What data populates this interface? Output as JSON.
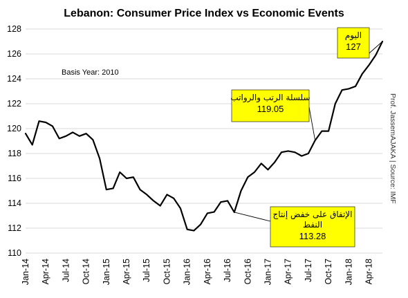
{
  "chart_data": {
    "type": "line",
    "title": "Lebanon: Consumer Price Index vs Economic Events",
    "xlabel": "",
    "ylabel": "",
    "ylim": [
      110,
      128
    ],
    "yticks": [
      110,
      112,
      114,
      116,
      118,
      120,
      122,
      124,
      126,
      128
    ],
    "grid": true,
    "legend": "none",
    "x_tick_labels": [
      "Jan-14",
      "Apr-14",
      "Jul-14",
      "Oct-14",
      "Jan-15",
      "Apr-15",
      "Jul-15",
      "Oct-15",
      "Jan-16",
      "Apr-16",
      "Jul-16",
      "Oct-16",
      "Jan-17",
      "Apr-17",
      "Jul-17",
      "Oct-17",
      "Jan-18",
      "Apr-18"
    ],
    "x": [
      "Jan-14",
      "Feb-14",
      "Mar-14",
      "Apr-14",
      "May-14",
      "Jun-14",
      "Jul-14",
      "Aug-14",
      "Sep-14",
      "Oct-14",
      "Nov-14",
      "Dec-14",
      "Jan-15",
      "Feb-15",
      "Mar-15",
      "Apr-15",
      "May-15",
      "Jun-15",
      "Jul-15",
      "Aug-15",
      "Sep-15",
      "Oct-15",
      "Nov-15",
      "Dec-15",
      "Jan-16",
      "Feb-16",
      "Mar-16",
      "Apr-16",
      "May-16",
      "Jun-16",
      "Jul-16",
      "Aug-16",
      "Sep-16",
      "Oct-16",
      "Nov-16",
      "Dec-16",
      "Jan-17",
      "Feb-17",
      "Mar-17",
      "Apr-17",
      "May-17",
      "Jun-17",
      "Jul-17",
      "Aug-17",
      "Sep-17",
      "Oct-17",
      "Nov-17",
      "Dec-17",
      "Jan-18",
      "Feb-18",
      "Mar-18",
      "Apr-18",
      "May-18",
      "Jun-18"
    ],
    "series": [
      {
        "color": "#000000",
        "values": [
          119.6,
          118.7,
          120.6,
          120.5,
          120.2,
          119.2,
          119.4,
          119.7,
          119.4,
          119.6,
          119.1,
          117.6,
          115.1,
          115.2,
          116.5,
          116.0,
          116.1,
          115.1,
          114.7,
          114.2,
          113.8,
          114.7,
          114.4,
          113.6,
          111.9,
          111.8,
          112.3,
          113.2,
          113.3,
          114.1,
          114.2,
          113.28,
          115.0,
          116.1,
          116.5,
          117.2,
          116.7,
          117.3,
          118.1,
          118.2,
          118.1,
          117.8,
          118.0,
          119.05,
          119.8,
          119.8,
          122.0,
          123.1,
          123.2,
          123.4,
          124.4,
          125.1,
          125.9,
          127.0
        ]
      }
    ],
    "annotations": [
      {
        "index": 53,
        "text": "اليوم",
        "value_label": "127"
      },
      {
        "index": 43,
        "text": "سلسلة الرتب والرواتب",
        "value_label": "119.05"
      },
      {
        "index": 31,
        "text": "الإتفاق على خفض إنتاج النفط",
        "text_lines": [
          "الإتفاق على خفض إنتاج",
          "النفط"
        ],
        "value_label": "113.28"
      }
    ],
    "notes": {
      "basis": "Basis Year: 2010",
      "credit": "Prof. JassemAJAKA | Source: IMF"
    }
  }
}
